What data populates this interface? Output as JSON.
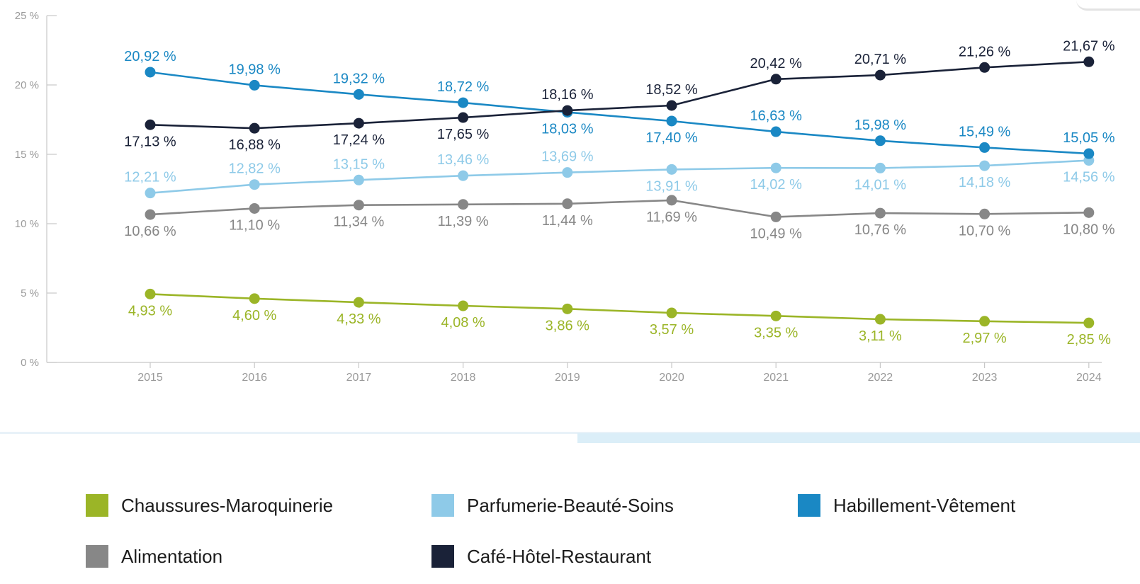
{
  "chart_data": {
    "type": "line",
    "title": "",
    "xlabel": "",
    "ylabel": "",
    "x": [
      "2015",
      "2016",
      "2017",
      "2018",
      "2019",
      "2020",
      "2021",
      "2022",
      "2023",
      "2024"
    ],
    "ylim": [
      0,
      25
    ],
    "y_ticks": [
      {
        "value": 0,
        "label": "0 %"
      },
      {
        "value": 5,
        "label": "5 %"
      },
      {
        "value": 10,
        "label": "10 %"
      },
      {
        "value": 15,
        "label": "15 %"
      },
      {
        "value": 20,
        "label": "20 %"
      },
      {
        "value": 25,
        "label": "25 %"
      }
    ],
    "grid": false,
    "legend_position": "bottom",
    "series": [
      {
        "name": "Chaussures-Maroquinerie",
        "color": "#9bb527",
        "values": [
          4.93,
          4.6,
          4.33,
          4.08,
          3.86,
          3.57,
          3.35,
          3.11,
          2.97,
          2.85
        ],
        "labels": [
          "4,93 %",
          "4,60 %",
          "4,33 %",
          "4,08 %",
          "3,86 %",
          "3,57 %",
          "3,35 %",
          "3,11 %",
          "2,97 %",
          "2,85 %"
        ],
        "label_pos": [
          "below",
          "below",
          "below",
          "below",
          "below",
          "below",
          "below",
          "below",
          "below",
          "below"
        ]
      },
      {
        "name": "Alimentation",
        "color": "#878787",
        "values": [
          10.66,
          11.1,
          11.34,
          11.39,
          11.44,
          11.69,
          10.49,
          10.76,
          10.7,
          10.8
        ],
        "labels": [
          "10,66 %",
          "11,10 %",
          "11,34 %",
          "11,39 %",
          "11,44 %",
          "11,69 %",
          "10,49 %",
          "10,76 %",
          "10,70 %",
          "10,80 %"
        ],
        "label_pos": [
          "below",
          "below",
          "below",
          "below",
          "below",
          "below",
          "below",
          "below",
          "below",
          "below"
        ]
      },
      {
        "name": "Parfumerie-Beauté-Soins",
        "color": "#8ecae8",
        "values": [
          12.21,
          12.82,
          13.15,
          13.46,
          13.69,
          13.91,
          14.02,
          14.01,
          14.18,
          14.56
        ],
        "labels": [
          "12,21 %",
          "12,82 %",
          "13,15 %",
          "13,46 %",
          "13,69 %",
          "13,91 %",
          "14,02 %",
          "14,01 %",
          "14,18 %",
          "14,56 %"
        ],
        "label_pos": [
          "above",
          "above",
          "above",
          "above",
          "above",
          "below",
          "below",
          "below",
          "below",
          "below"
        ]
      },
      {
        "name": "Habillement-Vêtement",
        "color": "#1a88c4",
        "values": [
          20.92,
          19.98,
          19.32,
          18.72,
          18.03,
          17.4,
          16.63,
          15.98,
          15.49,
          15.05
        ],
        "labels": [
          "20,92 %",
          "19,98 %",
          "19,32 %",
          "18,72 %",
          "18,03 %",
          "17,40 %",
          "16,63 %",
          "15,98 %",
          "15,49 %",
          "15,05 %"
        ],
        "label_pos": [
          "above",
          "above",
          "above",
          "above",
          "below",
          "below",
          "above",
          "above",
          "above",
          "above"
        ]
      },
      {
        "name": "Café-Hôtel-Restaurant",
        "color": "#1a2238",
        "values": [
          17.13,
          16.88,
          17.24,
          17.65,
          18.16,
          18.52,
          20.42,
          20.71,
          21.26,
          21.67
        ],
        "labels": [
          "17,13 %",
          "16,88 %",
          "17,24 %",
          "17,65 %",
          "18,16 %",
          "18,52 %",
          "20,42 %",
          "20,71 %",
          "21,26 %",
          "21,67 %"
        ],
        "label_pos": [
          "below",
          "below",
          "below",
          "below",
          "above",
          "above",
          "above",
          "above",
          "above",
          "above"
        ]
      }
    ]
  },
  "legend": {
    "items": [
      {
        "label": "Chaussures-Maroquinerie",
        "color": "#9bb527"
      },
      {
        "label": "Parfumerie-Beauté-Soins",
        "color": "#8ecae8"
      },
      {
        "label": "Habillement-Vêtement",
        "color": "#1a88c4"
      },
      {
        "label": "Alimentation",
        "color": "#878787"
      },
      {
        "label": "Café-Hôtel-Restaurant",
        "color": "#1a2238"
      }
    ]
  }
}
